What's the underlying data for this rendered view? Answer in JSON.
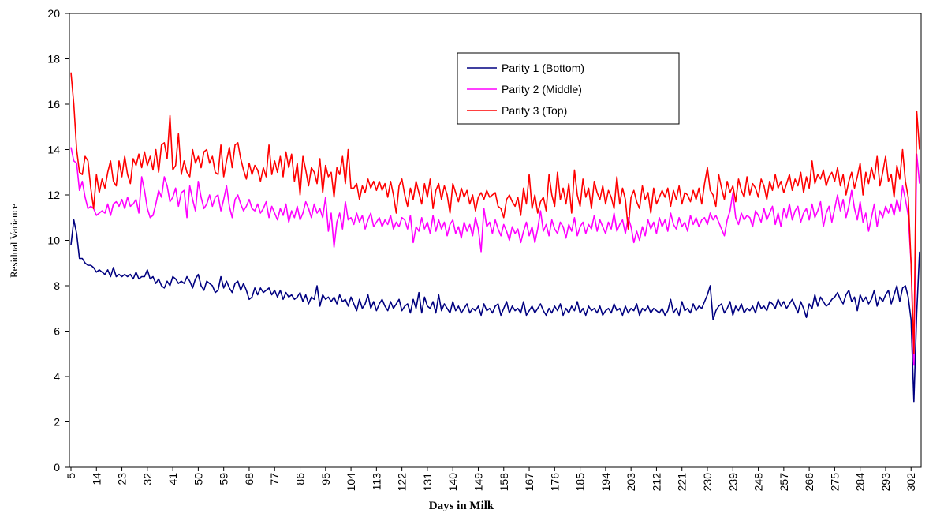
{
  "chart_data": {
    "type": "line",
    "x_label": "Days in Milk",
    "y_label": "Residual Variance",
    "xlim": [
      5,
      305
    ],
    "ylim": [
      0,
      20
    ],
    "xticks": [
      5,
      14,
      23,
      32,
      41,
      50,
      59,
      68,
      77,
      86,
      95,
      104,
      113,
      122,
      131,
      140,
      149,
      158,
      167,
      176,
      185,
      194,
      203,
      212,
      221,
      230,
      239,
      248,
      257,
      266,
      275,
      284,
      293,
      302
    ],
    "yticks": [
      0,
      2,
      4,
      6,
      8,
      10,
      12,
      14,
      16,
      18,
      20
    ],
    "grid": false,
    "legend": "top-center",
    "x": [
      5,
      6,
      7,
      8,
      9,
      10,
      11,
      12,
      13,
      14,
      15,
      16,
      17,
      18,
      19,
      20,
      21,
      22,
      23,
      24,
      25,
      26,
      27,
      28,
      29,
      30,
      31,
      32,
      33,
      34,
      35,
      36,
      37,
      38,
      39,
      40,
      41,
      42,
      43,
      44,
      45,
      46,
      47,
      48,
      49,
      50,
      51,
      52,
      53,
      54,
      55,
      56,
      57,
      58,
      59,
      60,
      61,
      62,
      63,
      64,
      65,
      66,
      67,
      68,
      69,
      70,
      71,
      72,
      73,
      74,
      75,
      76,
      77,
      78,
      79,
      80,
      81,
      82,
      83,
      84,
      85,
      86,
      87,
      88,
      89,
      90,
      91,
      92,
      93,
      94,
      95,
      96,
      97,
      98,
      99,
      100,
      101,
      102,
      103,
      104,
      105,
      106,
      107,
      108,
      109,
      110,
      111,
      112,
      113,
      114,
      115,
      116,
      117,
      118,
      119,
      120,
      121,
      122,
      123,
      124,
      125,
      126,
      127,
      128,
      129,
      130,
      131,
      132,
      133,
      134,
      135,
      136,
      137,
      138,
      139,
      140,
      141,
      142,
      143,
      144,
      145,
      146,
      147,
      148,
      149,
      150,
      151,
      152,
      153,
      154,
      155,
      156,
      157,
      158,
      159,
      160,
      161,
      162,
      163,
      164,
      165,
      166,
      167,
      168,
      169,
      170,
      171,
      172,
      173,
      174,
      175,
      176,
      177,
      178,
      179,
      180,
      181,
      182,
      183,
      184,
      185,
      186,
      187,
      188,
      189,
      190,
      191,
      192,
      193,
      194,
      195,
      196,
      197,
      198,
      199,
      200,
      201,
      202,
      203,
      204,
      205,
      206,
      207,
      208,
      209,
      210,
      211,
      212,
      213,
      214,
      215,
      216,
      217,
      218,
      219,
      220,
      221,
      222,
      223,
      224,
      225,
      226,
      227,
      228,
      229,
      230,
      231,
      232,
      233,
      234,
      235,
      236,
      237,
      238,
      239,
      240,
      241,
      242,
      243,
      244,
      245,
      246,
      247,
      248,
      249,
      250,
      251,
      252,
      253,
      254,
      255,
      256,
      257,
      258,
      259,
      260,
      261,
      262,
      263,
      264,
      265,
      266,
      267,
      268,
      269,
      270,
      271,
      272,
      273,
      274,
      275,
      276,
      277,
      278,
      279,
      280,
      281,
      282,
      283,
      284,
      285,
      286,
      287,
      288,
      289,
      290,
      291,
      292,
      293,
      294,
      295,
      296,
      297,
      298,
      299,
      300,
      301,
      302,
      303,
      304,
      305
    ],
    "series": [
      {
        "name": "Parity 1 (Bottom)",
        "color": "#000080",
        "values": [
          9.8,
          10.9,
          10.3,
          9.2,
          9.2,
          9.0,
          8.9,
          8.9,
          8.8,
          8.6,
          8.7,
          8.6,
          8.5,
          8.7,
          8.4,
          8.8,
          8.4,
          8.5,
          8.4,
          8.5,
          8.4,
          8.5,
          8.3,
          8.6,
          8.3,
          8.4,
          8.4,
          8.7,
          8.3,
          8.4,
          8.1,
          8.3,
          8.0,
          7.9,
          8.2,
          8.0,
          8.4,
          8.3,
          8.1,
          8.2,
          8.1,
          8.4,
          8.2,
          7.9,
          8.3,
          8.5,
          8.0,
          7.8,
          8.2,
          8.1,
          8.0,
          7.7,
          7.8,
          8.4,
          7.9,
          8.2,
          7.9,
          7.7,
          8.1,
          8.2,
          7.8,
          8.1,
          7.8,
          7.4,
          7.5,
          7.9,
          7.6,
          7.9,
          7.7,
          7.8,
          7.9,
          7.6,
          7.8,
          7.5,
          7.8,
          7.4,
          7.7,
          7.5,
          7.6,
          7.4,
          7.5,
          7.7,
          7.3,
          7.6,
          7.2,
          7.5,
          7.4,
          8.0,
          7.1,
          7.6,
          7.4,
          7.5,
          7.3,
          7.5,
          7.2,
          7.6,
          7.3,
          7.4,
          7.1,
          7.5,
          7.2,
          6.9,
          7.4,
          7.0,
          7.2,
          7.6,
          7.0,
          7.3,
          6.9,
          7.2,
          7.4,
          7.1,
          6.9,
          7.3,
          7.0,
          7.2,
          7.4,
          6.9,
          7.1,
          7.2,
          6.8,
          7.4,
          7.0,
          7.7,
          6.8,
          7.5,
          7.1,
          7.0,
          7.3,
          6.8,
          7.6,
          6.9,
          7.2,
          7.0,
          6.8,
          7.3,
          6.9,
          7.1,
          6.8,
          7.0,
          7.2,
          6.8,
          7.0,
          6.9,
          7.1,
          6.7,
          7.2,
          6.9,
          7.0,
          6.8,
          7.1,
          7.2,
          6.7,
          7.0,
          7.3,
          6.8,
          7.1,
          6.9,
          7.0,
          6.8,
          7.3,
          6.7,
          6.9,
          7.1,
          6.8,
          7.0,
          7.2,
          6.9,
          6.7,
          7.0,
          6.8,
          7.1,
          6.9,
          7.2,
          6.7,
          7.0,
          6.8,
          7.1,
          6.9,
          7.3,
          6.8,
          7.0,
          6.7,
          7.1,
          6.9,
          7.0,
          6.8,
          7.1,
          6.7,
          6.9,
          7.0,
          6.8,
          7.2,
          6.9,
          7.0,
          6.7,
          7.1,
          6.8,
          7.0,
          6.9,
          7.2,
          6.7,
          7.0,
          6.9,
          7.1,
          6.8,
          7.0,
          6.9,
          6.8,
          7.0,
          6.7,
          6.9,
          7.4,
          6.8,
          7.0,
          6.7,
          7.3,
          6.9,
          7.0,
          6.8,
          7.2,
          6.9,
          7.1,
          7.0,
          7.3,
          7.6,
          8.0,
          6.5,
          6.9,
          7.1,
          7.2,
          6.8,
          7.0,
          7.3,
          6.7,
          7.1,
          6.9,
          7.2,
          6.8,
          7.0,
          6.9,
          7.1,
          6.8,
          7.3,
          7.0,
          7.1,
          6.9,
          7.3,
          7.2,
          7.0,
          7.4,
          7.1,
          7.3,
          7.0,
          7.2,
          7.4,
          7.1,
          6.8,
          7.3,
          7.0,
          6.6,
          7.2,
          7.0,
          7.6,
          7.1,
          7.5,
          7.3,
          7.1,
          7.2,
          7.4,
          7.5,
          7.7,
          7.4,
          7.2,
          7.6,
          7.8,
          7.3,
          7.5,
          6.9,
          7.6,
          7.3,
          7.5,
          7.2,
          7.4,
          7.8,
          7.1,
          7.5,
          7.3,
          7.6,
          7.8,
          7.2,
          7.6,
          8.0,
          7.3,
          7.9,
          8.0,
          7.5,
          6.5,
          2.9,
          6.8,
          9.5
        ]
      },
      {
        "name": "Parity 2 (Middle)",
        "color": "#ff00ff",
        "values": [
          14.1,
          13.5,
          13.4,
          12.2,
          12.6,
          11.9,
          11.4,
          11.5,
          11.4,
          11.1,
          11.2,
          11.3,
          11.2,
          11.6,
          11.1,
          11.6,
          11.7,
          11.5,
          11.8,
          11.4,
          11.9,
          11.5,
          11.6,
          11.8,
          11.2,
          12.8,
          12.2,
          11.4,
          11.0,
          11.1,
          11.6,
          12.2,
          11.9,
          12.8,
          12.4,
          11.7,
          11.9,
          12.3,
          11.5,
          12.1,
          12.2,
          11.0,
          12.4,
          11.8,
          11.3,
          12.6,
          11.9,
          11.4,
          11.6,
          12.0,
          11.5,
          11.9,
          12.0,
          11.3,
          11.8,
          12.4,
          11.5,
          11.0,
          11.8,
          12.0,
          11.6,
          11.3,
          11.5,
          11.8,
          11.4,
          11.3,
          11.6,
          11.2,
          11.4,
          11.7,
          11.0,
          11.5,
          11.2,
          10.9,
          11.4,
          11.1,
          11.6,
          10.8,
          11.3,
          11.0,
          11.5,
          10.9,
          11.2,
          11.7,
          11.4,
          11.0,
          11.6,
          11.2,
          11.4,
          11.0,
          11.9,
          10.4,
          11.2,
          9.7,
          10.8,
          11.2,
          10.5,
          11.7,
          10.9,
          11.0,
          10.7,
          11.2,
          10.8,
          11.1,
          10.5,
          10.9,
          11.2,
          10.6,
          10.8,
          11.0,
          10.6,
          10.9,
          10.7,
          11.1,
          10.5,
          10.8,
          10.6,
          11.0,
          10.9,
          10.5,
          11.1,
          9.9,
          10.6,
          10.4,
          11.0,
          10.5,
          10.8,
          10.3,
          11.1,
          10.4,
          10.9,
          10.5,
          10.8,
          10.2,
          10.7,
          10.9,
          10.3,
          10.6,
          10.1,
          10.8,
          10.4,
          10.7,
          10.2,
          11.0,
          10.5,
          9.5,
          11.4,
          10.6,
          10.8,
          10.3,
          10.9,
          10.5,
          10.2,
          10.7,
          10.4,
          10.0,
          10.6,
          10.3,
          10.5,
          9.9,
          10.4,
          10.8,
          10.2,
          10.6,
          9.9,
          10.5,
          11.3,
          10.4,
          10.7,
          10.2,
          10.9,
          10.5,
          10.3,
          10.8,
          10.6,
          10.1,
          10.7,
          10.4,
          11.0,
          10.2,
          10.6,
          10.8,
          10.3,
          10.7,
          10.5,
          11.1,
          10.4,
          10.9,
          10.6,
          10.3,
          10.8,
          10.5,
          11.2,
          10.4,
          10.7,
          10.9,
          10.3,
          11.0,
          10.6,
          9.9,
          10.4,
          10.0,
          10.6,
          10.2,
          10.9,
          10.5,
          10.8,
          10.3,
          11.0,
          10.6,
          10.9,
          10.4,
          11.2,
          10.7,
          10.5,
          11.0,
          10.6,
          10.8,
          10.4,
          11.1,
          10.7,
          11.0,
          10.6,
          10.9,
          11.0,
          10.7,
          11.2,
          10.9,
          11.1,
          10.8,
          10.5,
          10.2,
          10.9,
          11.3,
          12.1,
          11.0,
          10.7,
          11.2,
          10.9,
          11.1,
          11.0,
          10.6,
          11.3,
          11.1,
          10.8,
          11.4,
          10.9,
          11.2,
          11.5,
          10.7,
          11.2,
          10.6,
          11.4,
          11.0,
          11.6,
          10.9,
          11.3,
          11.5,
          10.8,
          11.2,
          11.4,
          10.9,
          11.6,
          11.0,
          11.3,
          11.7,
          10.6,
          11.2,
          11.5,
          10.8,
          11.4,
          12.0,
          11.3,
          11.8,
          11.0,
          11.5,
          12.2,
          11.4,
          10.9,
          11.7,
          10.8,
          11.2,
          10.4,
          11.0,
          11.6,
          10.6,
          11.3,
          11.0,
          11.5,
          11.2,
          11.6,
          11.1,
          11.8,
          11.3,
          12.4,
          11.8,
          11.1,
          9.0,
          4.5,
          13.8,
          12.5
        ]
      },
      {
        "name": "Parity 3 (Top)",
        "color": "#ff0000",
        "values": [
          17.4,
          16.0,
          14.0,
          13.0,
          12.9,
          13.7,
          13.5,
          12.3,
          11.4,
          12.9,
          12.1,
          12.7,
          12.3,
          13.0,
          13.5,
          12.6,
          12.4,
          13.5,
          12.8,
          13.7,
          12.9,
          12.5,
          13.6,
          13.3,
          13.8,
          13.2,
          13.9,
          13.3,
          13.7,
          13.1,
          14.0,
          13.0,
          14.2,
          14.3,
          13.6,
          15.5,
          13.1,
          13.3,
          14.7,
          12.9,
          13.5,
          13.0,
          12.8,
          14.0,
          13.4,
          13.7,
          13.2,
          13.9,
          14.0,
          13.4,
          13.7,
          13.0,
          12.9,
          14.2,
          12.8,
          13.5,
          14.1,
          13.2,
          14.2,
          14.3,
          13.6,
          13.1,
          12.7,
          13.4,
          12.9,
          13.3,
          13.1,
          12.6,
          13.2,
          12.8,
          14.2,
          12.9,
          13.5,
          13.0,
          13.7,
          12.8,
          13.9,
          13.2,
          13.8,
          12.6,
          13.4,
          12.0,
          13.7,
          13.1,
          12.4,
          13.2,
          13.0,
          12.5,
          13.6,
          12.1,
          13.3,
          12.8,
          13.0,
          11.9,
          13.2,
          12.9,
          13.7,
          12.5,
          14.0,
          12.3,
          12.3,
          12.5,
          11.8,
          12.4,
          12.1,
          12.7,
          12.3,
          12.6,
          12.2,
          12.6,
          12.2,
          12.5,
          11.9,
          12.6,
          12.0,
          11.2,
          12.4,
          12.7,
          12.0,
          11.5,
          12.3,
          11.8,
          12.6,
          12.1,
          11.6,
          12.5,
          11.9,
          12.7,
          11.4,
          12.2,
          12.5,
          11.8,
          12.4,
          12.0,
          11.2,
          12.5,
          12.1,
          11.7,
          12.3,
          11.9,
          12.2,
          11.6,
          12.0,
          11.3,
          11.9,
          12.1,
          11.8,
          12.2,
          11.9,
          12.0,
          12.1,
          11.5,
          11.4,
          11.0,
          11.8,
          12.0,
          11.7,
          11.5,
          11.9,
          11.1,
          12.3,
          11.6,
          12.9,
          11.4,
          12.0,
          11.2,
          11.7,
          11.9,
          11.3,
          12.9,
          12.0,
          11.5,
          13.0,
          11.8,
          12.3,
          11.6,
          12.5,
          11.2,
          13.1,
          12.0,
          11.5,
          12.7,
          11.9,
          12.3,
          11.4,
          12.6,
          12.1,
          11.8,
          12.4,
          11.6,
          12.2,
          11.9,
          11.4,
          12.8,
          11.6,
          12.3,
          11.8,
          10.5,
          11.9,
          12.2,
          11.7,
          11.4,
          12.4,
          11.8,
          12.1,
          11.2,
          12.3,
          11.6,
          11.9,
          12.2,
          11.9,
          12.3,
          11.5,
          12.2,
          11.8,
          12.4,
          11.6,
          12.1,
          12.0,
          11.7,
          12.2,
          11.8,
          12.3,
          11.6,
          12.5,
          13.2,
          12.2,
          12.0,
          11.5,
          12.9,
          12.3,
          11.8,
          12.6,
          12.1,
          12.4,
          11.7,
          12.7,
          12.2,
          11.9,
          12.8,
          12.0,
          12.5,
          12.3,
          11.9,
          12.7,
          12.4,
          11.8,
          12.6,
          12.2,
          12.9,
          12.3,
          12.6,
          12.1,
          12.5,
          12.9,
          12.2,
          12.7,
          12.4,
          13.0,
          12.1,
          12.8,
          12.3,
          13.5,
          12.5,
          12.9,
          12.7,
          13.1,
          12.4,
          12.8,
          13.0,
          12.6,
          13.2,
          12.4,
          12.9,
          12.0,
          12.6,
          13.0,
          12.3,
          12.8,
          13.4,
          12.0,
          13.0,
          12.5,
          13.2,
          12.7,
          13.7,
          12.4,
          13.0,
          13.7,
          12.6,
          12.9,
          11.9,
          13.3,
          12.7,
          14.0,
          12.6,
          11.9,
          9.0,
          5.0,
          15.7,
          14.0
        ]
      }
    ]
  }
}
